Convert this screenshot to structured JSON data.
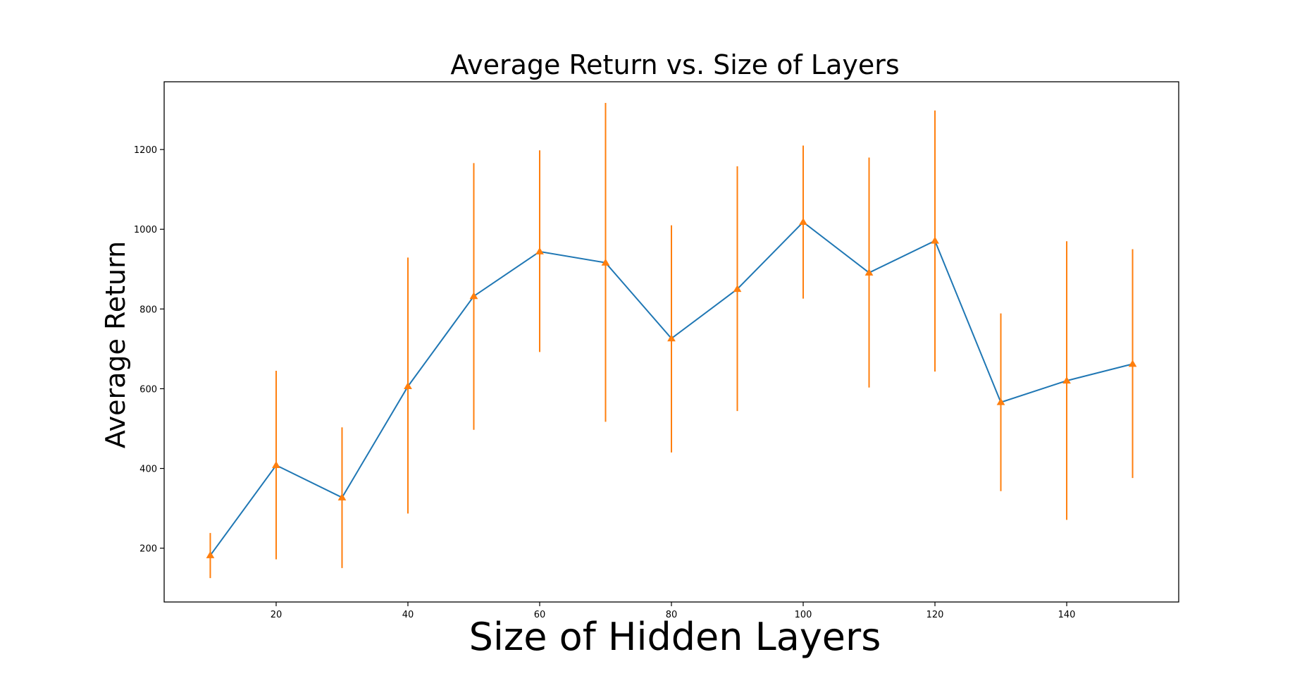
{
  "chart_data": {
    "type": "line",
    "title": "Average Return vs. Size of Layers",
    "xlabel": "Size of Hidden Layers",
    "ylabel": "Average Return",
    "xlim": [
      3,
      157
    ],
    "ylim": [
      65,
      1370
    ],
    "xticks": [
      20,
      40,
      60,
      80,
      100,
      120,
      140
    ],
    "yticks": [
      200,
      400,
      600,
      800,
      1000,
      1200
    ],
    "grid": false,
    "legend": "none",
    "series": [
      {
        "x": [
          10,
          20,
          30,
          40,
          50,
          60,
          70,
          80,
          90,
          100,
          110,
          120,
          130,
          140,
          150
        ],
        "values": [
          182,
          408,
          327,
          606,
          832,
          944,
          916,
          726,
          850,
          1018,
          891,
          971,
          566,
          620,
          662
        ],
        "error_low": [
          125,
          172,
          150,
          287,
          497,
          692,
          517,
          440,
          544,
          826,
          603,
          643,
          343,
          271,
          376
        ],
        "error_high": [
          238,
          645,
          503,
          929,
          1166,
          1198,
          1317,
          1010,
          1158,
          1210,
          1180,
          1298,
          789,
          970,
          950
        ],
        "line_color": "#1f77b4",
        "marker_color": "#ff7f0e",
        "marker": "triangle"
      }
    ]
  }
}
